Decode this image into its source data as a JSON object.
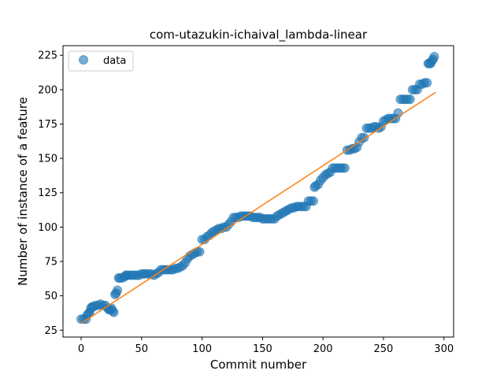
{
  "chart_data": {
    "type": "scatter",
    "title": "com-utazukin-ichaival_lambda-linear",
    "xlabel": "Commit number",
    "ylabel": "Number of instance of a feature",
    "xlim": [
      -15,
      308
    ],
    "ylim": [
      20,
      232
    ],
    "x_ticks": [
      0,
      50,
      100,
      150,
      200,
      250,
      300
    ],
    "y_ticks": [
      25,
      50,
      75,
      100,
      125,
      150,
      175,
      200,
      225
    ],
    "grid": false,
    "legend": {
      "placement": "top-left",
      "entries": [
        "data"
      ]
    },
    "colors": {
      "data": "#1f77b4",
      "fit": "#ff7f0e"
    },
    "series": [
      {
        "name": "data",
        "kind": "scatter",
        "points": [
          [
            0,
            33
          ],
          [
            2,
            33
          ],
          [
            4,
            33
          ],
          [
            5,
            36
          ],
          [
            6,
            37
          ],
          [
            7,
            38
          ],
          [
            8,
            41
          ],
          [
            9,
            42
          ],
          [
            10,
            42
          ],
          [
            12,
            43
          ],
          [
            14,
            43
          ],
          [
            16,
            44
          ],
          [
            18,
            43
          ],
          [
            20,
            43
          ],
          [
            22,
            41
          ],
          [
            23,
            40
          ],
          [
            24,
            40
          ],
          [
            25,
            41
          ],
          [
            26,
            39
          ],
          [
            27,
            38
          ],
          [
            28,
            51
          ],
          [
            29,
            52
          ],
          [
            30,
            54
          ],
          [
            31,
            63
          ],
          [
            32,
            63
          ],
          [
            34,
            63
          ],
          [
            36,
            64
          ],
          [
            37,
            65
          ],
          [
            38,
            65
          ],
          [
            40,
            65
          ],
          [
            42,
            65
          ],
          [
            44,
            65
          ],
          [
            46,
            65
          ],
          [
            48,
            65
          ],
          [
            50,
            66
          ],
          [
            52,
            66
          ],
          [
            54,
            66
          ],
          [
            56,
            66
          ],
          [
            58,
            66
          ],
          [
            60,
            65
          ],
          [
            62,
            66
          ],
          [
            64,
            67
          ],
          [
            66,
            69
          ],
          [
            68,
            69
          ],
          [
            70,
            69
          ],
          [
            72,
            69
          ],
          [
            74,
            69
          ],
          [
            76,
            69
          ],
          [
            78,
            70
          ],
          [
            80,
            70
          ],
          [
            82,
            71
          ],
          [
            84,
            72
          ],
          [
            86,
            74
          ],
          [
            88,
            77
          ],
          [
            90,
            79
          ],
          [
            92,
            80
          ],
          [
            94,
            81
          ],
          [
            96,
            82
          ],
          [
            98,
            82
          ],
          [
            100,
            91
          ],
          [
            102,
            91
          ],
          [
            104,
            93
          ],
          [
            106,
            94
          ],
          [
            108,
            96
          ],
          [
            110,
            97
          ],
          [
            112,
            98
          ],
          [
            114,
            99
          ],
          [
            116,
            99
          ],
          [
            118,
            100
          ],
          [
            120,
            100
          ],
          [
            122,
            102
          ],
          [
            124,
            104
          ],
          [
            126,
            107
          ],
          [
            128,
            107
          ],
          [
            130,
            107
          ],
          [
            132,
            108
          ],
          [
            134,
            108
          ],
          [
            136,
            108
          ],
          [
            138,
            108
          ],
          [
            140,
            108
          ],
          [
            142,
            107
          ],
          [
            144,
            107
          ],
          [
            146,
            107
          ],
          [
            148,
            107
          ],
          [
            150,
            106
          ],
          [
            152,
            106
          ],
          [
            154,
            106
          ],
          [
            156,
            106
          ],
          [
            158,
            106
          ],
          [
            160,
            106
          ],
          [
            162,
            108
          ],
          [
            164,
            109
          ],
          [
            166,
            110
          ],
          [
            168,
            111
          ],
          [
            170,
            112
          ],
          [
            172,
            113
          ],
          [
            174,
            114
          ],
          [
            176,
            114
          ],
          [
            178,
            115
          ],
          [
            180,
            115
          ],
          [
            182,
            115
          ],
          [
            184,
            115
          ],
          [
            186,
            115
          ],
          [
            188,
            119
          ],
          [
            190,
            119
          ],
          [
            192,
            119
          ],
          [
            193,
            129
          ],
          [
            194,
            130
          ],
          [
            196,
            131
          ],
          [
            198,
            134
          ],
          [
            200,
            136
          ],
          [
            202,
            138
          ],
          [
            204,
            139
          ],
          [
            206,
            140
          ],
          [
            208,
            143
          ],
          [
            210,
            143
          ],
          [
            212,
            143
          ],
          [
            214,
            143
          ],
          [
            216,
            143
          ],
          [
            218,
            143
          ],
          [
            220,
            156
          ],
          [
            222,
            156
          ],
          [
            224,
            157
          ],
          [
            226,
            157
          ],
          [
            228,
            158
          ],
          [
            230,
            162
          ],
          [
            232,
            165
          ],
          [
            234,
            165
          ],
          [
            236,
            172
          ],
          [
            238,
            172
          ],
          [
            240,
            172
          ],
          [
            242,
            173
          ],
          [
            244,
            173
          ],
          [
            246,
            172
          ],
          [
            248,
            173
          ],
          [
            250,
            177
          ],
          [
            252,
            178
          ],
          [
            254,
            179
          ],
          [
            256,
            179
          ],
          [
            258,
            179
          ],
          [
            260,
            179
          ],
          [
            262,
            183
          ],
          [
            264,
            193
          ],
          [
            266,
            193
          ],
          [
            268,
            193
          ],
          [
            270,
            193
          ],
          [
            272,
            193
          ],
          [
            274,
            200
          ],
          [
            276,
            200
          ],
          [
            278,
            200
          ],
          [
            280,
            204
          ],
          [
            282,
            204
          ],
          [
            284,
            205
          ],
          [
            286,
            205
          ],
          [
            287,
            219
          ],
          [
            288,
            219
          ],
          [
            289,
            219
          ],
          [
            290,
            221
          ],
          [
            291,
            222
          ],
          [
            292,
            224
          ]
        ]
      },
      {
        "kind": "line",
        "x": [
          0,
          293
        ],
        "y": [
          30,
          198
        ]
      }
    ]
  }
}
